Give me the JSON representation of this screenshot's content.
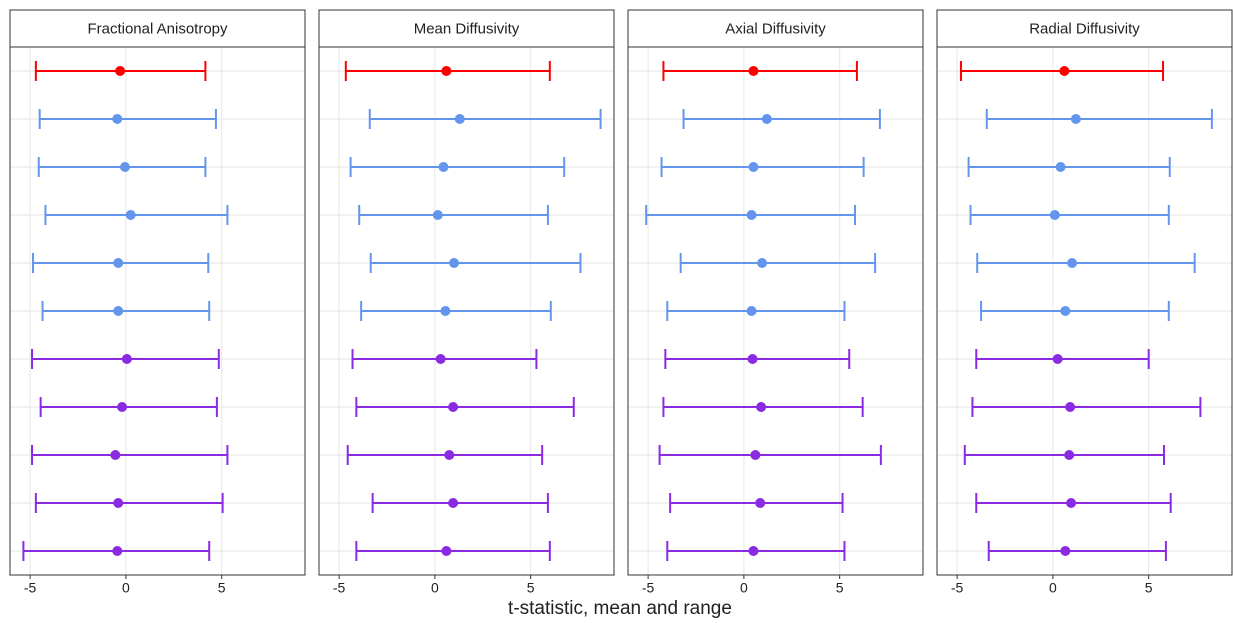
{
  "chart_data": {
    "type": "errorbar",
    "xlabel": "t-statistic, mean and range",
    "grid": true,
    "row_colors": [
      "#ff0000",
      "#6495ed",
      "#6495ed",
      "#6495ed",
      "#6495ed",
      "#6495ed",
      "#8a2be2",
      "#8a2be2",
      "#8a2be2",
      "#8a2be2",
      "#8a2be2"
    ],
    "panels": [
      {
        "title": "Fractional Anisotropy",
        "xlim": [
          -6.05,
          9.35
        ],
        "xticks": [
          -5,
          0,
          5
        ],
        "means": [
          -0.3,
          -0.45,
          -0.05,
          0.25,
          -0.4,
          -0.4,
          0.05,
          -0.2,
          -0.55,
          -0.4,
          -0.45
        ],
        "mins": [
          -4.7,
          -4.5,
          -4.55,
          -4.2,
          -4.85,
          -4.35,
          -4.9,
          -4.45,
          -4.9,
          -4.7,
          -5.35
        ],
        "maxs": [
          4.15,
          4.7,
          4.15,
          5.3,
          4.3,
          4.35,
          4.85,
          4.75,
          5.3,
          5.05,
          4.35
        ]
      },
      {
        "title": "Mean Diffusivity",
        "xlim": [
          -6.05,
          9.35
        ],
        "xticks": [
          -5,
          0,
          5
        ],
        "means": [
          0.6,
          1.3,
          0.45,
          0.15,
          1.0,
          0.55,
          0.3,
          0.95,
          0.75,
          0.95,
          0.6
        ],
        "mins": [
          -4.65,
          -3.4,
          -4.4,
          -3.95,
          -3.35,
          -3.85,
          -4.3,
          -4.1,
          -4.55,
          -3.25,
          -4.1
        ],
        "maxs": [
          6.0,
          8.65,
          6.75,
          5.9,
          7.6,
          6.05,
          5.3,
          7.25,
          5.6,
          5.9,
          6.0
        ]
      },
      {
        "title": "Axial Diffusivity",
        "xlim": [
          -6.05,
          9.35
        ],
        "xticks": [
          -5,
          0,
          5
        ],
        "means": [
          0.5,
          1.2,
          0.5,
          0.4,
          0.95,
          0.4,
          0.45,
          0.9,
          0.6,
          0.85,
          0.5
        ],
        "mins": [
          -4.2,
          -3.15,
          -4.3,
          -5.1,
          -3.3,
          -4.0,
          -4.1,
          -4.2,
          -4.4,
          -3.85,
          -4.0
        ],
        "maxs": [
          5.9,
          7.1,
          6.25,
          5.8,
          6.85,
          5.25,
          5.5,
          6.2,
          7.15,
          5.15,
          5.25
        ]
      },
      {
        "title": "Radial Diffusivity",
        "xlim": [
          -6.05,
          9.35
        ],
        "xticks": [
          -5,
          0,
          5
        ],
        "means": [
          0.6,
          1.2,
          0.4,
          0.1,
          1.0,
          0.65,
          0.25,
          0.9,
          0.85,
          0.95,
          0.65
        ],
        "mins": [
          -4.8,
          -3.45,
          -4.4,
          -4.3,
          -3.95,
          -3.75,
          -4.0,
          -4.2,
          -4.6,
          -4.0,
          -3.35
        ],
        "maxs": [
          5.75,
          8.3,
          6.1,
          6.05,
          7.4,
          6.05,
          5.0,
          7.7,
          5.8,
          6.15,
          5.9
        ]
      }
    ]
  }
}
